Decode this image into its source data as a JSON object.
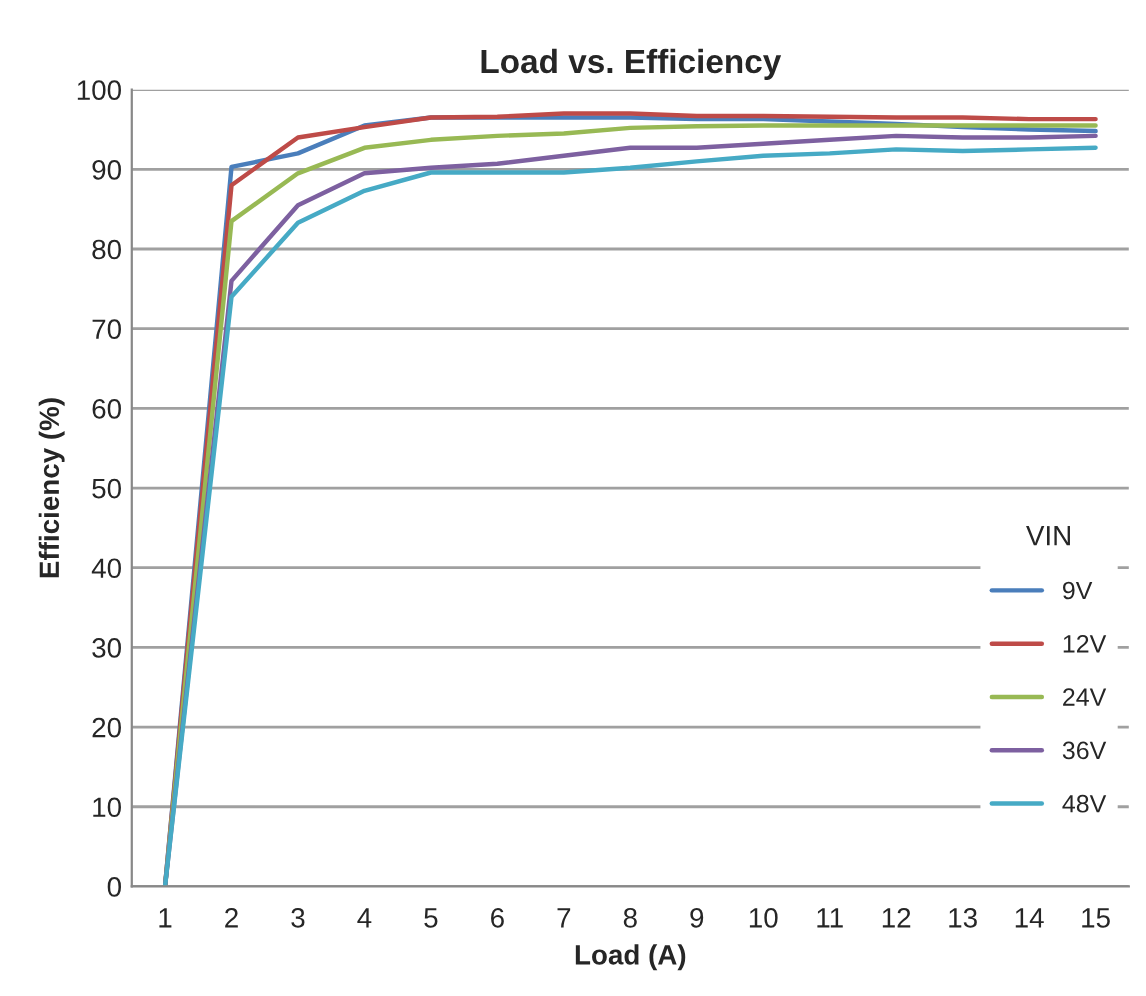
{
  "chart_data": {
    "type": "line",
    "title": "Load vs. Efficiency",
    "xlabel": "Load (A)",
    "ylabel": "Efficiency (%)",
    "legend_title": "VIN",
    "categories": [
      "1",
      "2",
      "3",
      "4",
      "5",
      "6",
      "7",
      "8",
      "9",
      "10",
      "11",
      "12",
      "13",
      "14",
      "15"
    ],
    "series": [
      {
        "name": "9V",
        "color": "#4a7ebb",
        "values": [
          0,
          90.3,
          92,
          95.5,
          96.5,
          96.5,
          96.5,
          96.5,
          96.3,
          96.3,
          96,
          95.7,
          95.3,
          95,
          94.8
        ]
      },
      {
        "name": "12V",
        "color": "#be4b48",
        "values": [
          0,
          88,
          94,
          95.3,
          96.5,
          96.6,
          97,
          97,
          96.7,
          96.7,
          96.6,
          96.5,
          96.5,
          96.3,
          96.3
        ]
      },
      {
        "name": "24V",
        "color": "#98b954",
        "values": [
          0,
          83.5,
          89.5,
          92.7,
          93.7,
          94.2,
          94.5,
          95.2,
          95.4,
          95.5,
          95.5,
          95.5,
          95.5,
          95.5,
          95.5
        ]
      },
      {
        "name": "36V",
        "color": "#7d60a0",
        "values": [
          0,
          76,
          85.5,
          89.5,
          90.2,
          90.7,
          91.7,
          92.7,
          92.7,
          93.2,
          93.7,
          94.2,
          94,
          94,
          94.2
        ]
      },
      {
        "name": "48V",
        "color": "#46aac5",
        "values": [
          0,
          74,
          83.3,
          87.3,
          89.6,
          89.6,
          89.6,
          90.2,
          91,
          91.7,
          92,
          92.5,
          92.3,
          92.5,
          92.7
        ]
      }
    ],
    "ylim": [
      0,
      100
    ],
    "yticks": [
      0,
      10,
      20,
      30,
      40,
      50,
      60,
      70,
      80,
      90,
      100
    ],
    "grid": "y",
    "legend": "right",
    "marker": "none",
    "line_style": "solid"
  }
}
